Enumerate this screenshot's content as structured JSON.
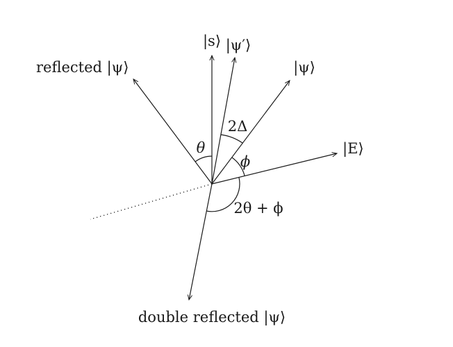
{
  "labels": {
    "s": "|s⟩",
    "psi_prime": "|ψ′⟩",
    "psi": "|ψ⟩",
    "reflected": "reflected |ψ⟩",
    "E": "|E⟩",
    "double_reflected": "double reflected |ψ⟩",
    "theta": "θ",
    "two_delta": "2Δ",
    "phi": "ϕ",
    "two_theta_plus_phi": "2θ + ϕ"
  }
}
